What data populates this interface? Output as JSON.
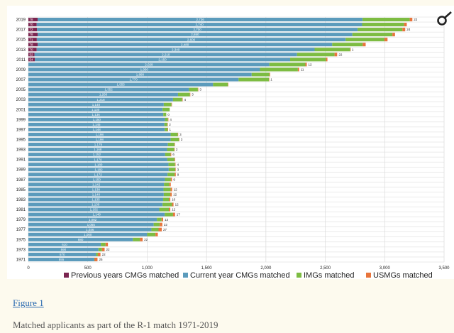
{
  "figure": {
    "link_label": "Figure 1",
    "caption": "Matched applicants as part of the R-1 match 1971-2019"
  },
  "chart_data": {
    "type": "bar",
    "orientation": "horizontal",
    "stacked": true,
    "title": "",
    "xlabel": "",
    "ylabel": "",
    "xlim": [
      0,
      3500
    ],
    "xticks": [
      0,
      500,
      1000,
      1500,
      2000,
      2500,
      3000,
      3500
    ],
    "xtick_labels": [
      "0",
      "500",
      "1,000",
      "1,500",
      "2,000",
      "2,500",
      "3,000",
      "3,500"
    ],
    "grid": true,
    "legend_position": "bottom",
    "categories": [
      "1971",
      "1972",
      "1973",
      "1974",
      "1975",
      "1976",
      "1977",
      "1978",
      "1979",
      "1980",
      "1981",
      "1982",
      "1983",
      "1984",
      "1985",
      "1986",
      "1987",
      "1988",
      "1989",
      "1990",
      "1991",
      "1992",
      "1993",
      "1994",
      "1995",
      "1996",
      "1997",
      "1998",
      "1999",
      "2000",
      "2001",
      "2002",
      "2003",
      "2004",
      "2005",
      "2006",
      "2007",
      "2008",
      "2009",
      "2010",
      "2011",
      "2012",
      "2013",
      "2014",
      "2015",
      "2016",
      "2017",
      "2018",
      "2019"
    ],
    "category_labels_shown": [
      "1971",
      "1973",
      "1975",
      "1977",
      "1979",
      "1981",
      "1983",
      "1985",
      "1987",
      "1989",
      "1991",
      "1993",
      "1995",
      "1997",
      "1999",
      "2001",
      "2003",
      "2005",
      "2007",
      "2009",
      "2011",
      "2013",
      "2015",
      "2017",
      "2019"
    ],
    "series": [
      {
        "name": "Previous years CMGs matched",
        "color": "#7b2550",
        "values": [
          0,
          0,
          0,
          0,
          0,
          0,
          0,
          0,
          0,
          0,
          0,
          0,
          0,
          0,
          0,
          0,
          0,
          0,
          0,
          0,
          0,
          0,
          0,
          0,
          0,
          0,
          0,
          0,
          0,
          0,
          0,
          0,
          0,
          0,
          0,
          0,
          0,
          0,
          0,
          0,
          54,
          52,
          70,
          78,
          71,
          78,
          72,
          70,
          78
        ]
      },
      {
        "name": "Current year CMGs matched",
        "color": "#5b9bbc",
        "values": [
          555,
          570,
          590,
          610,
          880,
          1000,
          1036,
          1055,
          1082,
          1148,
          1102,
          1130,
          1135,
          1140,
          1138,
          1142,
          1150,
          1172,
          1182,
          1180,
          1170,
          1152,
          1168,
          1175,
          1198,
          1198,
          1148,
          1145,
          1150,
          1136,
          1130,
          1140,
          1218,
          1260,
          1352,
          1555,
          1770,
          1880,
          1950,
          2029,
          2150,
          2210,
          2340,
          2480,
          2600,
          2650,
          2700,
          2740,
          2736
        ]
      },
      {
        "name": "IMGs matched",
        "color": "#7dbc42",
        "values": [
          2,
          15,
          30,
          40,
          60,
          70,
          60,
          51,
          40,
          70,
          81,
          80,
          50,
          55,
          60,
          45,
          50,
          60,
          55,
          55,
          60,
          45,
          60,
          55,
          70,
          60,
          25,
          25,
          25,
          25,
          60,
          65,
          77,
          100,
          75,
          125,
          255,
          150,
          319,
          303,
          302,
          316,
          300,
          257,
          327,
          337,
          377,
          354,
          397
        ]
      },
      {
        "name": "USMGs matched",
        "color": "#e8743b",
        "values": [
          25,
          22,
          22,
          20,
          22,
          20,
          27,
          22,
          13,
          17,
          12,
          12,
          10,
          12,
          12,
          12,
          9,
          9,
          3,
          4,
          5,
          6,
          2,
          3,
          3,
          3,
          1,
          2,
          4,
          0,
          0,
          3,
          4,
          3,
          3,
          3,
          1,
          5,
          11,
          12,
          12,
          22,
          1,
          25,
          26,
          22,
          24,
          22,
          22
        ]
      }
    ],
    "data_labels": {
      "Previous years CMGs matched": [
        "",
        "",
        "",
        "",
        "",
        "",
        "",
        "",
        "",
        "",
        "",
        "",
        "",
        "",
        "",
        "",
        "",
        "",
        "",
        "",
        "",
        "",
        "",
        "",
        "",
        "",
        "",
        "",
        "",
        "",
        "",
        "",
        "",
        "",
        "",
        "",
        "",
        "",
        "",
        "",
        "54",
        "52",
        "70",
        "78",
        "71",
        "78",
        "72",
        "70",
        "78"
      ],
      "Current year CMGs matched": [
        "555",
        "570",
        "590",
        "610",
        "880",
        "1,000",
        "1,036",
        "1,055",
        "1,082",
        "1,148",
        "1,102",
        "1,130",
        "1,135",
        "1,140",
        "1,138",
        "1,142",
        "1,150",
        "1,172",
        "1,182",
        "1,180",
        "1,170",
        "1,152",
        "1,168",
        "1,175",
        "1,198",
        "1,198",
        "1,148",
        "1,145",
        "1,150",
        "1,136",
        "1,130",
        "1,140",
        "1,218",
        "1,260",
        "1,352",
        "1,555",
        "1,770",
        "1,880",
        "1,950",
        "2,029",
        "2,150",
        "2,210",
        "2,340",
        "2,480",
        "2,600",
        "2,650",
        "2,700",
        "2,740",
        "2,736"
      ],
      "IMGs matched": [
        "",
        "",
        "",
        "",
        "",
        "",
        "",
        "",
        "",
        "",
        "",
        "",
        "",
        "",
        "",
        "",
        "",
        "",
        "",
        "",
        "",
        "",
        "",
        "",
        "",
        "",
        "",
        "",
        "",
        "",
        "",
        "",
        "",
        "",
        "",
        "",
        "",
        "",
        "",
        "",
        "",
        "",
        "",
        "",
        "",
        "",
        "",
        "",
        ""
      ],
      "USMGs matched": [
        "25",
        "22",
        "22",
        "",
        "22",
        "",
        "27",
        "22",
        "13",
        "17",
        "12",
        "12",
        "10",
        "12",
        "12",
        "",
        "9",
        "9",
        "3",
        "4",
        "",
        "6",
        "2",
        "",
        "3",
        "3",
        "1",
        "2",
        "4",
        "0",
        "",
        "",
        "4",
        "3",
        "3",
        "",
        "1",
        "",
        "11",
        "12",
        "",
        "22",
        "1",
        "",
        "",
        "",
        "24",
        "",
        "22"
      ]
    }
  },
  "corner_icon": {
    "name": "link-icon",
    "glyph": "∞"
  }
}
